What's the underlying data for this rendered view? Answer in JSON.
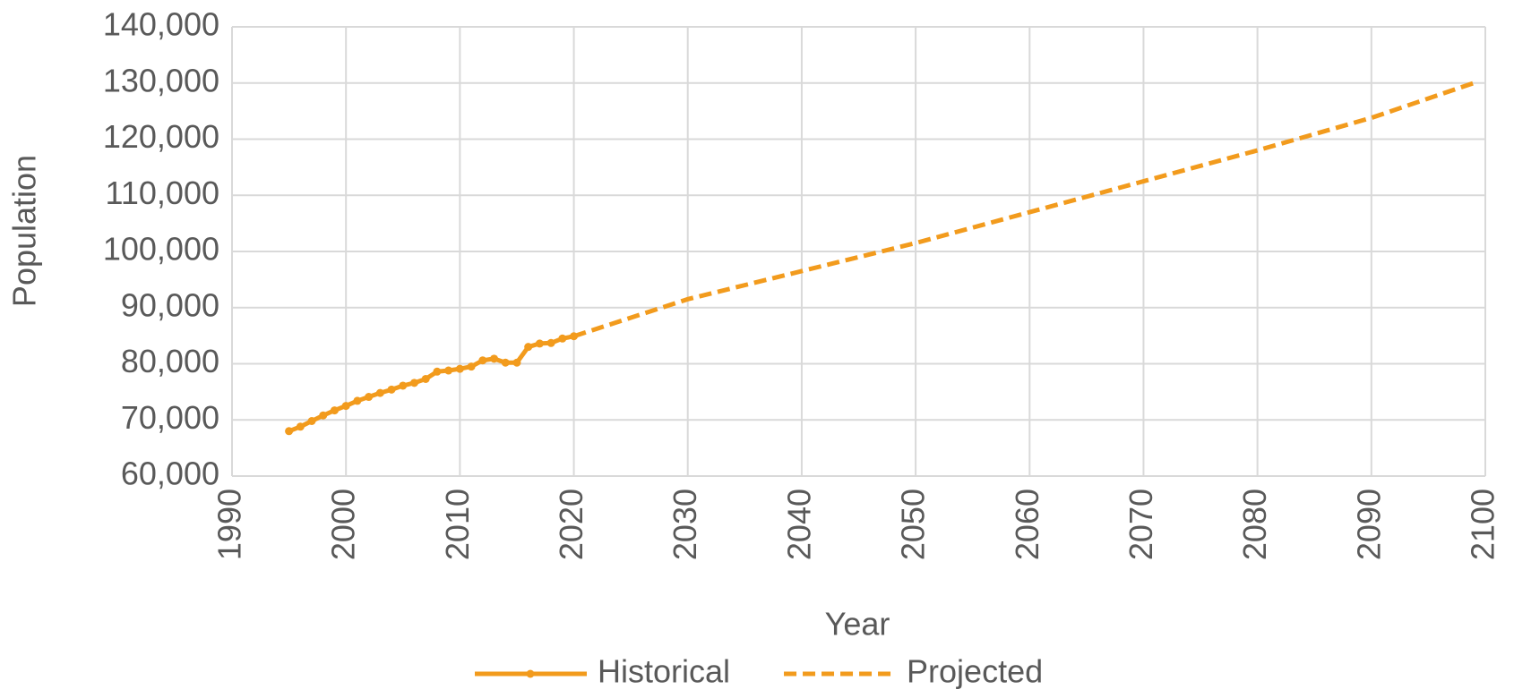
{
  "chart_data": {
    "type": "line",
    "x_label": "Year",
    "y_label": "Population",
    "series": [
      {
        "name": "Historical",
        "color": "#f29b1d",
        "dashed": false,
        "markers": true,
        "x": [
          1995,
          1996,
          1997,
          1998,
          1999,
          2000,
          2001,
          2002,
          2003,
          2004,
          2005,
          2006,
          2007,
          2008,
          2009,
          2010,
          2011,
          2012,
          2013,
          2014,
          2015,
          2016,
          2017,
          2018,
          2019,
          2020
        ],
        "values": [
          68000,
          68800,
          69800,
          70800,
          71700,
          72500,
          73400,
          74100,
          74800,
          75400,
          76100,
          76600,
          77300,
          78600,
          78800,
          79100,
          79500,
          80600,
          80900,
          80200,
          80200,
          83000,
          83600,
          83700,
          84500,
          84900
        ]
      },
      {
        "name": "Projected",
        "color": "#f29b1d",
        "dashed": true,
        "markers": false,
        "x": [
          2020,
          2030,
          2040,
          2050,
          2060,
          2070,
          2080,
          2090,
          2099
        ],
        "values": [
          84900,
          91500,
          96500,
          101500,
          107000,
          112500,
          118000,
          123800,
          130000
        ]
      }
    ],
    "xlim": [
      1990,
      2100
    ],
    "xticks": [
      1990,
      2000,
      2010,
      2020,
      2030,
      2040,
      2050,
      2060,
      2070,
      2080,
      2090,
      2100
    ],
    "ylim": [
      60000,
      140000
    ],
    "yticks": [
      {
        "value": 60000,
        "label": "60,000"
      },
      {
        "value": 70000,
        "label": "70,000"
      },
      {
        "value": 80000,
        "label": "80,000"
      },
      {
        "value": 90000,
        "label": "90,000"
      },
      {
        "value": 100000,
        "label": "100,000"
      },
      {
        "value": 110000,
        "label": "110,000"
      },
      {
        "value": 120000,
        "label": "120,000"
      },
      {
        "value": 130000,
        "label": "130,000"
      },
      {
        "value": 140000,
        "label": "140,000"
      }
    ],
    "grid": true,
    "legend": "bottom"
  }
}
